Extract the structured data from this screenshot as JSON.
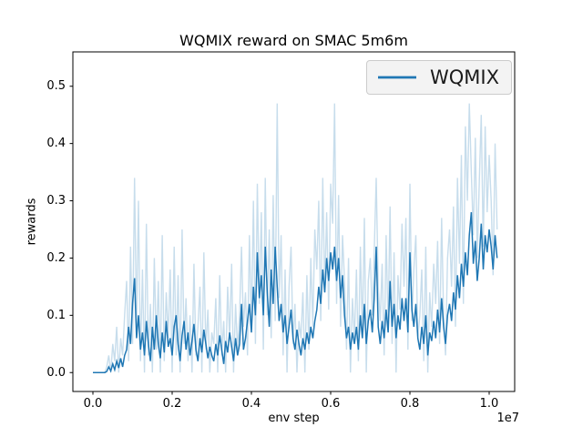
{
  "chart_data": {
    "type": "line",
    "title": "WQMIX reward on SMAC 5m6m",
    "xlabel": "env step",
    "ylabel": "rewards",
    "x_offset_text": "1e7",
    "x_axis_multiplier": 10000000,
    "x_start": 0,
    "x_step": 0.005,
    "xlim": [
      -0.0506,
      1.0644
    ],
    "ylim": [
      -0.033,
      0.56
    ],
    "grid": false,
    "legend_position": "upper right",
    "xticks": {
      "values": [
        0.0,
        0.2,
        0.4,
        0.6,
        0.8,
        1.0
      ],
      "labels": [
        "0.0",
        "0.2",
        "0.4",
        "0.6",
        "0.8",
        "1.0"
      ]
    },
    "yticks": {
      "values": [
        0.0,
        0.1,
        0.2,
        0.3,
        0.4,
        0.5
      ],
      "labels": [
        "0.0",
        "0.1",
        "0.2",
        "0.3",
        "0.4",
        "0.5"
      ]
    },
    "series": [
      {
        "name": "WQMIX (raw episodes)",
        "in_legend": false,
        "color": "#c7ddec",
        "line_width": 1.4,
        "y": [
          0,
          0,
          0,
          0,
          0,
          0,
          0,
          0.01,
          0.03,
          0,
          0.05,
          0.02,
          0.08,
          0,
          0.06,
          0.03,
          0.1,
          0.16,
          0.02,
          0.22,
          0.05,
          0.34,
          0.08,
          0.3,
          0.02,
          0.18,
          0,
          0.26,
          0.03,
          0.12,
          0,
          0.2,
          0.04,
          0.16,
          0,
          0.24,
          0.02,
          0.14,
          0.06,
          0.18,
          0,
          0.22,
          0.03,
          0.17,
          0,
          0.25,
          0.05,
          0.13,
          0.02,
          0.1,
          0,
          0.19,
          0.03,
          0.08,
          0.15,
          0,
          0.21,
          0.04,
          0.11,
          0,
          0.07,
          0.05,
          0.13,
          0,
          0.17,
          0.03,
          0.09,
          0,
          0.15,
          0.06,
          0.19,
          0,
          0.12,
          0.04,
          0.1,
          0.22,
          0.08,
          0.14,
          0.03,
          0.24,
          0.08,
          0.3,
          0.05,
          0.33,
          0.12,
          0.28,
          0.04,
          0.34,
          0.1,
          0.25,
          0.06,
          0.31,
          0.09,
          0.47,
          0.13,
          0.24,
          0.03,
          0.18,
          0,
          0.15,
          0.22,
          0.05,
          0.12,
          0,
          0.09,
          0.06,
          0.14,
          0,
          0.17,
          0.04,
          0.2,
          0.08,
          0.25,
          0.18,
          0.3,
          0.09,
          0.34,
          0.14,
          0.28,
          0.11,
          0.33,
          0.26,
          0.47,
          0.12,
          0.31,
          0.08,
          0.24,
          0.16,
          0.04,
          0.2,
          0,
          0.13,
          0.06,
          0.18,
          0.02,
          0.22,
          0.07,
          0.27,
          0,
          0.16,
          0.2,
          0.1,
          0.21,
          0.34,
          0.15,
          0.09,
          0.19,
          0.03,
          0.24,
          0.08,
          0.29,
          0.05,
          0.21,
          0,
          0.17,
          0.11,
          0.26,
          0.15,
          0.27,
          0.04,
          0.33,
          0.09,
          0.18,
          0.24,
          0.06,
          0.1,
          0.18,
          0.02,
          0.22,
          0,
          0.14,
          0.08,
          0.19,
          0.12,
          0.23,
          0.05,
          0.27,
          0.1,
          0.03,
          0.2,
          0.25,
          0.15,
          0.29,
          0.08,
          0.34,
          0.19,
          0.38,
          0.12,
          0.43,
          0.3,
          0.47,
          0.35,
          0.24,
          0.41,
          0.2,
          0.33,
          0.45,
          0.22,
          0.43,
          0.28,
          0.38,
          0.3,
          0.17,
          0.4,
          0.25
        ]
      },
      {
        "name": "WQMIX",
        "in_legend": true,
        "color": "#1f77b4",
        "line_width": 1.5,
        "y": [
          0,
          0,
          0,
          0,
          0,
          0,
          0,
          0.002,
          0.01,
          0.003,
          0.015,
          0.005,
          0.02,
          0.008,
          0.025,
          0.01,
          0.03,
          0.04,
          0.08,
          0.05,
          0.12,
          0.165,
          0.06,
          0.1,
          0.04,
          0.07,
          0.03,
          0.09,
          0.05,
          0.02,
          0.08,
          0.04,
          0.1,
          0.05,
          0.025,
          0.07,
          0.035,
          0.09,
          0.045,
          0.06,
          0.03,
          0.08,
          0.1,
          0.05,
          0.02,
          0.065,
          0.09,
          0.04,
          0.07,
          0.03,
          0.055,
          0.085,
          0.04,
          0.02,
          0.06,
          0.035,
          0.075,
          0.05,
          0.025,
          0.045,
          0.03,
          0.02,
          0.05,
          0.03,
          0.065,
          0.04,
          0.015,
          0.055,
          0.035,
          0.07,
          0.045,
          0.02,
          0.06,
          0.03,
          0.05,
          0.12,
          0.04,
          0.06,
          0.09,
          0.12,
          0.07,
          0.15,
          0.1,
          0.21,
          0.13,
          0.17,
          0.1,
          0.22,
          0.14,
          0.08,
          0.18,
          0.12,
          0.22,
          0.15,
          0.09,
          0.12,
          0.07,
          0.1,
          0.05,
          0.08,
          0.11,
          0.06,
          0.04,
          0.075,
          0.05,
          0.03,
          0.06,
          0.04,
          0.07,
          0.05,
          0.08,
          0.06,
          0.09,
          0.11,
          0.15,
          0.12,
          0.18,
          0.14,
          0.2,
          0.16,
          0.21,
          0.18,
          0.22,
          0.16,
          0.2,
          0.13,
          0.17,
          0.1,
          0.06,
          0.08,
          0.04,
          0.07,
          0.05,
          0.08,
          0.04,
          0.1,
          0.06,
          0.12,
          0.05,
          0.09,
          0.11,
          0.07,
          0.13,
          0.22,
          0.08,
          0.05,
          0.09,
          0.06,
          0.11,
          0.07,
          0.16,
          0.08,
          0.12,
          0.06,
          0.1,
          0.075,
          0.13,
          0.09,
          0.13,
          0.07,
          0.21,
          0.11,
          0.08,
          0.12,
          0.06,
          0.04,
          0.08,
          0.05,
          0.1,
          0.03,
          0.07,
          0.055,
          0.09,
          0.06,
          0.11,
          0.07,
          0.13,
          0.08,
          0.05,
          0.1,
          0.12,
          0.09,
          0.14,
          0.11,
          0.17,
          0.13,
          0.19,
          0.15,
          0.21,
          0.17,
          0.24,
          0.28,
          0.19,
          0.23,
          0.16,
          0.2,
          0.26,
          0.18,
          0.24,
          0.21,
          0.25,
          0.22,
          0.18,
          0.24,
          0.2
        ]
      }
    ]
  },
  "colors": {
    "axes_edge": "#000000",
    "background": "#ffffff",
    "legend_face": "#f2f2f2",
    "legend_edge": "#cccccc"
  }
}
